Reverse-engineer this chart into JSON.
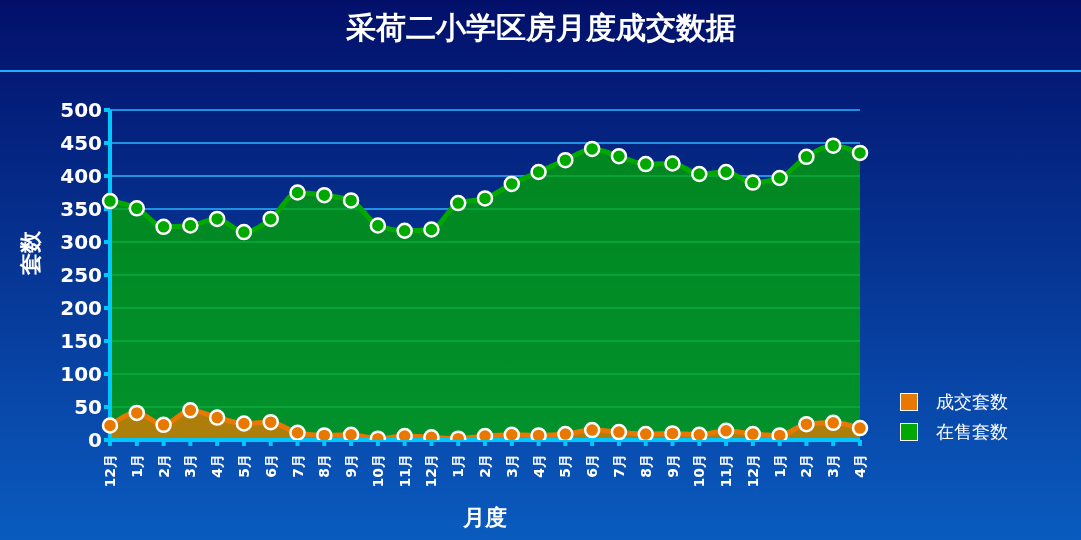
{
  "chart_data": {
    "type": "area",
    "title": "采荷二小学区房月度成交数据",
    "xlabel": "月度",
    "ylabel": "套数",
    "categories": [
      "12月",
      "1月",
      "2月",
      "3月",
      "4月",
      "5月",
      "6月",
      "7月",
      "8月",
      "9月",
      "10月",
      "11月",
      "12月",
      "1月",
      "2月",
      "3月",
      "4月",
      "5月",
      "6月",
      "7月",
      "8月",
      "9月",
      "10月",
      "11月",
      "12月",
      "1月",
      "2月",
      "3月",
      "4月"
    ],
    "series": [
      {
        "name": "成交套数",
        "color": "#e87800",
        "values": [
          22,
          41,
          23,
          45,
          34,
          25,
          27,
          11,
          7,
          8,
          2,
          6,
          4,
          2,
          6,
          8,
          7,
          9,
          15,
          12,
          9,
          10,
          8,
          14,
          9,
          7,
          24,
          26,
          18
        ]
      },
      {
        "name": "在售套数",
        "color": "#00a800",
        "values": [
          362,
          351,
          323,
          325,
          335,
          315,
          335,
          375,
          371,
          363,
          325,
          317,
          319,
          359,
          366,
          388,
          406,
          424,
          441,
          430,
          418,
          419,
          403,
          406,
          390,
          397,
          429,
          446,
          435
        ]
      }
    ],
    "ylim": [
      0,
      500
    ],
    "yticks": [
      0,
      50,
      100,
      150,
      200,
      250,
      300,
      350,
      400,
      450,
      500
    ],
    "grid": "y",
    "legend": "right",
    "marker": "circle"
  }
}
